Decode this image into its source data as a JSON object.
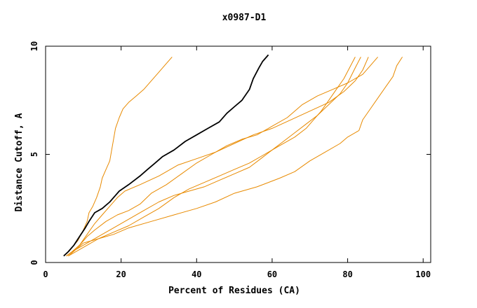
{
  "chart_data": {
    "type": "line",
    "title": "x0987-D1",
    "xlabel": "Percent of Residues (CA)",
    "ylabel": "Distance Cutoff, A",
    "xlim": [
      0,
      102
    ],
    "ylim": [
      0,
      10
    ],
    "xticks": [
      0,
      20,
      40,
      60,
      80,
      100
    ],
    "yticks": [
      0,
      5,
      10
    ],
    "grid": false,
    "legend": "none",
    "colors": {
      "highlight": "#000000",
      "others": "#e88a00"
    },
    "series": [
      {
        "highlight": true,
        "points": [
          [
            4.8,
            0.3
          ],
          [
            6,
            0.5
          ],
          [
            7.5,
            0.8
          ],
          [
            9,
            1.2
          ],
          [
            10.5,
            1.6
          ],
          [
            11.5,
            1.9
          ],
          [
            13,
            2.3
          ],
          [
            15,
            2.5
          ],
          [
            17,
            2.8
          ],
          [
            18.5,
            3.1
          ],
          [
            19.5,
            3.3
          ],
          [
            22,
            3.6
          ],
          [
            25,
            4.0
          ],
          [
            27,
            4.3
          ],
          [
            29,
            4.6
          ],
          [
            31,
            4.9
          ],
          [
            34,
            5.2
          ],
          [
            37,
            5.6
          ],
          [
            40,
            5.9
          ],
          [
            43,
            6.2
          ],
          [
            46,
            6.5
          ],
          [
            48,
            6.9
          ],
          [
            50,
            7.2
          ],
          [
            52,
            7.5
          ],
          [
            54,
            8.0
          ],
          [
            55,
            8.5
          ],
          [
            56.5,
            9.0
          ],
          [
            57.5,
            9.3
          ],
          [
            59,
            9.6
          ]
        ]
      },
      {
        "highlight": false,
        "points": [
          [
            5.5,
            0.4
          ],
          [
            7,
            0.7
          ],
          [
            8.5,
            1.0
          ],
          [
            10,
            1.5
          ],
          [
            11,
            1.9
          ],
          [
            11.5,
            2.3
          ],
          [
            12.5,
            2.6
          ],
          [
            13.5,
            3.0
          ],
          [
            14.5,
            3.5
          ],
          [
            15,
            3.9
          ],
          [
            16,
            4.3
          ],
          [
            17,
            4.7
          ],
          [
            17.5,
            5.2
          ],
          [
            18,
            5.7
          ],
          [
            18.5,
            6.2
          ],
          [
            19.5,
            6.7
          ],
          [
            20.5,
            7.1
          ],
          [
            22,
            7.4
          ],
          [
            24,
            7.7
          ],
          [
            26,
            8.0
          ],
          [
            28,
            8.4
          ],
          [
            30,
            8.8
          ],
          [
            32,
            9.2
          ],
          [
            33.5,
            9.5
          ]
        ]
      },
      {
        "highlight": false,
        "points": [
          [
            5.5,
            0.3
          ],
          [
            7,
            0.5
          ],
          [
            9,
            0.8
          ],
          [
            11,
            1.3
          ],
          [
            13,
            1.8
          ],
          [
            15,
            2.2
          ],
          [
            17,
            2.6
          ],
          [
            19,
            3.0
          ],
          [
            21,
            3.3
          ],
          [
            25,
            3.6
          ],
          [
            30,
            4.0
          ],
          [
            35,
            4.5
          ],
          [
            40,
            4.8
          ],
          [
            45,
            5.1
          ],
          [
            50,
            5.5
          ],
          [
            55,
            5.9
          ],
          [
            60,
            6.2
          ],
          [
            65,
            6.6
          ],
          [
            70,
            7.0
          ],
          [
            75,
            7.4
          ],
          [
            79,
            7.9
          ],
          [
            82,
            8.4
          ],
          [
            84,
            8.9
          ],
          [
            85.5,
            9.5
          ]
        ]
      },
      {
        "highlight": false,
        "points": [
          [
            5.5,
            0.3
          ],
          [
            7,
            0.5
          ],
          [
            9,
            0.8
          ],
          [
            11,
            1.2
          ],
          [
            13,
            1.5
          ],
          [
            16,
            1.9
          ],
          [
            19,
            2.2
          ],
          [
            22,
            2.4
          ],
          [
            25,
            2.7
          ],
          [
            28,
            3.2
          ],
          [
            32,
            3.6
          ],
          [
            36,
            4.1
          ],
          [
            40,
            4.6
          ],
          [
            44,
            5.0
          ],
          [
            48,
            5.4
          ],
          [
            52,
            5.7
          ],
          [
            56,
            5.9
          ],
          [
            60,
            6.3
          ],
          [
            64,
            6.7
          ],
          [
            68,
            7.3
          ],
          [
            72,
            7.7
          ],
          [
            76,
            8.0
          ],
          [
            80,
            8.3
          ],
          [
            84,
            8.7
          ],
          [
            86,
            9.1
          ],
          [
            88,
            9.5
          ]
        ]
      },
      {
        "highlight": false,
        "points": [
          [
            5.5,
            0.3
          ],
          [
            7,
            0.5
          ],
          [
            9,
            0.7
          ],
          [
            12,
            1.0
          ],
          [
            15,
            1.3
          ],
          [
            18,
            1.6
          ],
          [
            22,
            2.0
          ],
          [
            26,
            2.4
          ],
          [
            30,
            2.8
          ],
          [
            34,
            3.1
          ],
          [
            38,
            3.3
          ],
          [
            42,
            3.5
          ],
          [
            46,
            3.8
          ],
          [
            50,
            4.1
          ],
          [
            54,
            4.4
          ],
          [
            57,
            4.8
          ],
          [
            60,
            5.2
          ],
          [
            63,
            5.6
          ],
          [
            66,
            6.0
          ],
          [
            69,
            6.4
          ],
          [
            72,
            6.8
          ],
          [
            75,
            7.3
          ],
          [
            78,
            7.8
          ],
          [
            80,
            8.3
          ],
          [
            82,
            9.0
          ],
          [
            83.5,
            9.5
          ]
        ]
      },
      {
        "highlight": false,
        "points": [
          [
            6,
            0.3
          ],
          [
            8,
            0.5
          ],
          [
            11,
            0.8
          ],
          [
            14,
            1.1
          ],
          [
            18,
            1.4
          ],
          [
            22,
            1.7
          ],
          [
            26,
            2.1
          ],
          [
            30,
            2.5
          ],
          [
            34,
            3.0
          ],
          [
            38,
            3.4
          ],
          [
            42,
            3.7
          ],
          [
            46,
            4.0
          ],
          [
            50,
            4.3
          ],
          [
            54,
            4.6
          ],
          [
            58,
            5.0
          ],
          [
            62,
            5.4
          ],
          [
            66,
            5.8
          ],
          [
            69,
            6.2
          ],
          [
            71,
            6.6
          ],
          [
            73,
            7.0
          ],
          [
            75,
            7.5
          ],
          [
            77,
            8.0
          ],
          [
            79,
            8.5
          ],
          [
            80.5,
            9.0
          ],
          [
            82,
            9.5
          ]
        ]
      },
      {
        "highlight": false,
        "points": [
          [
            6,
            0.3
          ],
          [
            8,
            0.6
          ],
          [
            10,
            0.9
          ],
          [
            14,
            1.1
          ],
          [
            18,
            1.3
          ],
          [
            22,
            1.6
          ],
          [
            28,
            1.9
          ],
          [
            34,
            2.2
          ],
          [
            40,
            2.5
          ],
          [
            45,
            2.8
          ],
          [
            50,
            3.2
          ],
          [
            56,
            3.5
          ],
          [
            62,
            3.9
          ],
          [
            66,
            4.2
          ],
          [
            70,
            4.7
          ],
          [
            74,
            5.1
          ],
          [
            78,
            5.5
          ],
          [
            80,
            5.8
          ],
          [
            83,
            6.1
          ],
          [
            84,
            6.6
          ],
          [
            86,
            7.1
          ],
          [
            88,
            7.6
          ],
          [
            90,
            8.1
          ],
          [
            92,
            8.6
          ],
          [
            93,
            9.1
          ],
          [
            94.5,
            9.5
          ]
        ]
      }
    ]
  }
}
